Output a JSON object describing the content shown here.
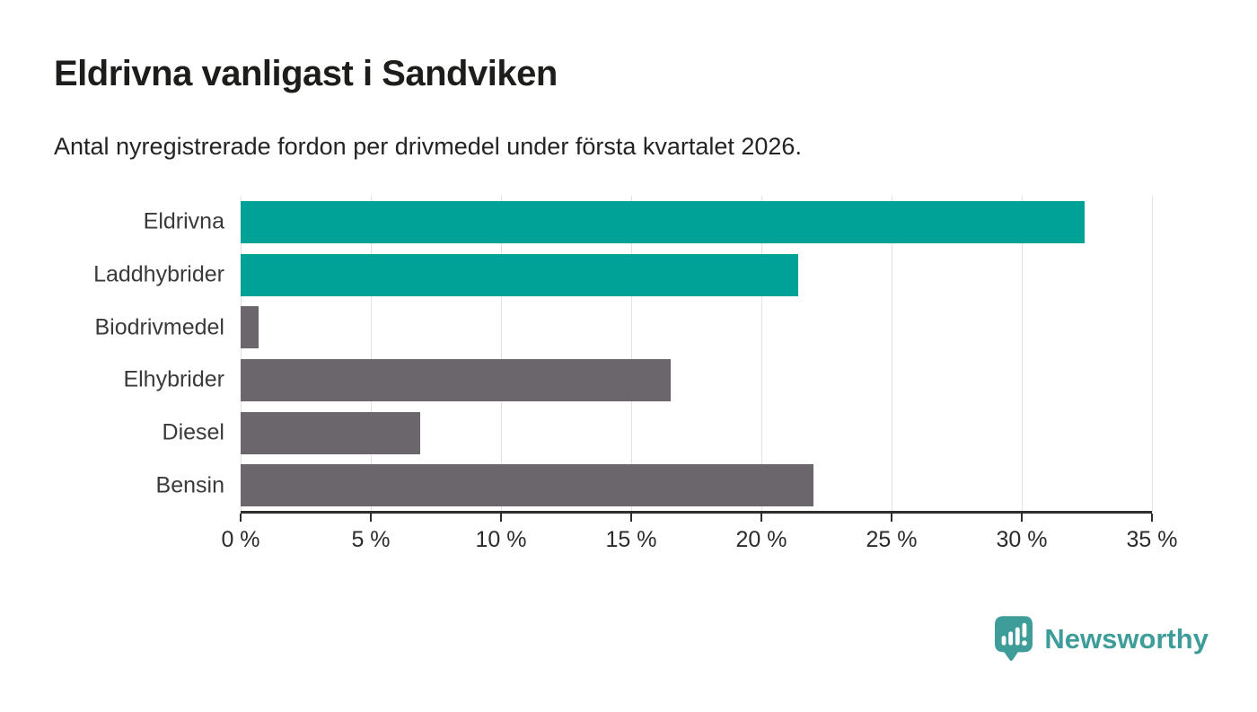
{
  "chart_data": {
    "type": "bar",
    "orientation": "horizontal",
    "title": "Eldrivna vanligast i Sandviken",
    "subtitle": "Antal nyregistrerade fordon per drivmedel under första kvartalet 2026.",
    "categories": [
      "Eldrivna",
      "Laddhybrider",
      "Biodrivmedel",
      "Elhybrider",
      "Diesel",
      "Bensin"
    ],
    "values": [
      32.4,
      21.4,
      0.7,
      16.5,
      6.9,
      22.0
    ],
    "unit": "%",
    "xlim": [
      0,
      35
    ],
    "x_ticks": [
      "0 %",
      "5 %",
      "10 %",
      "15 %",
      "20 %",
      "25 %",
      "30 %",
      "35 %"
    ],
    "x_tick_values": [
      0,
      5,
      10,
      15,
      20,
      25,
      30,
      35
    ],
    "bar_colors": [
      "#00a197",
      "#00a197",
      "#6a666b",
      "#6a666b",
      "#6a666b",
      "#6a666b"
    ],
    "accent_color": "#00a197",
    "neutral_color": "#6a666b",
    "gridline_color": "#e2e2e2",
    "axis_color": "#2e2e2e",
    "grid": true,
    "legend": false
  },
  "footer": {
    "brand": "Newsworthy",
    "brand_color": "#3f9d99",
    "logo_icon": "newsworthy-pin-barchart-icon"
  }
}
